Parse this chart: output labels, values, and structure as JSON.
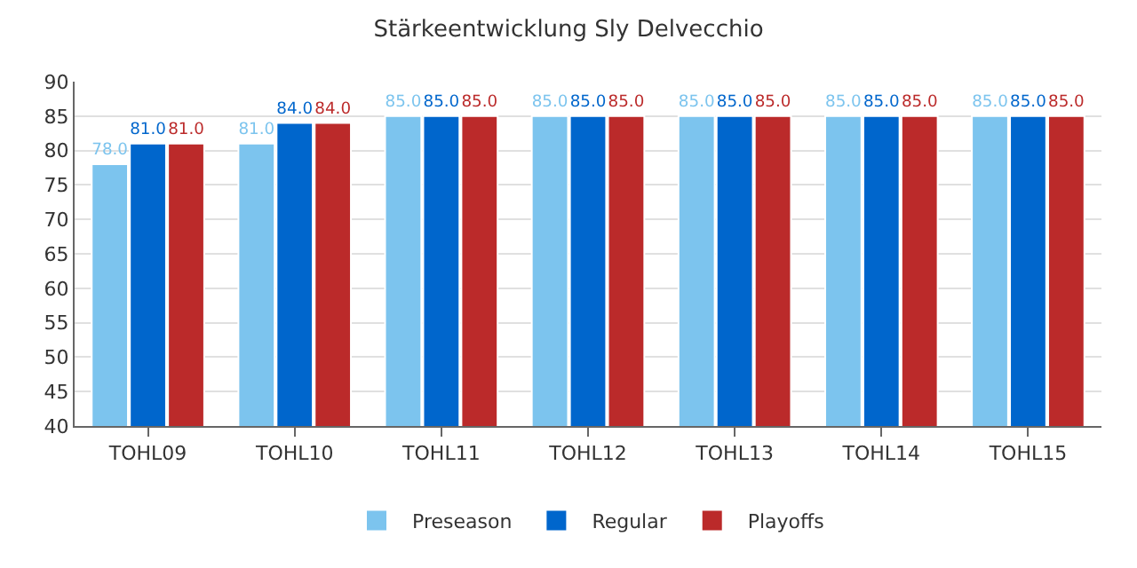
{
  "chart_data": {
    "type": "bar",
    "title": "Stärkeentwicklung Sly Delvecchio",
    "categories": [
      "TOHL09",
      "TOHL10",
      "TOHL11",
      "TOHL12",
      "TOHL13",
      "TOHL14",
      "TOHL15"
    ],
    "series": [
      {
        "name": "Preseason",
        "color": "#7cc4ee",
        "values": [
          78,
          81,
          85,
          85,
          85,
          85,
          85
        ],
        "value_labels": [
          "78.0",
          "81.0",
          "85.0",
          "85.0",
          "85.0",
          "85.0",
          "85.0"
        ]
      },
      {
        "name": "Regular",
        "color": "#0066cc",
        "values": [
          81,
          84,
          85,
          85,
          85,
          85,
          85
        ],
        "value_labels": [
          "81.0",
          "84.0",
          "85.0",
          "85.0",
          "85.0",
          "85.0",
          "85.0"
        ]
      },
      {
        "name": "Playoffs",
        "color": "#bb2a2a",
        "values": [
          81,
          84,
          85,
          85,
          85,
          85,
          85
        ],
        "value_labels": [
          "81.0",
          "84.0",
          "85.0",
          "85.0",
          "85.0",
          "85.0",
          "85.0"
        ]
      }
    ],
    "ylim": [
      40,
      90
    ],
    "yticks": [
      40,
      45,
      50,
      55,
      60,
      65,
      70,
      75,
      80,
      85,
      90
    ],
    "grid": "y",
    "legend": "bottom"
  }
}
